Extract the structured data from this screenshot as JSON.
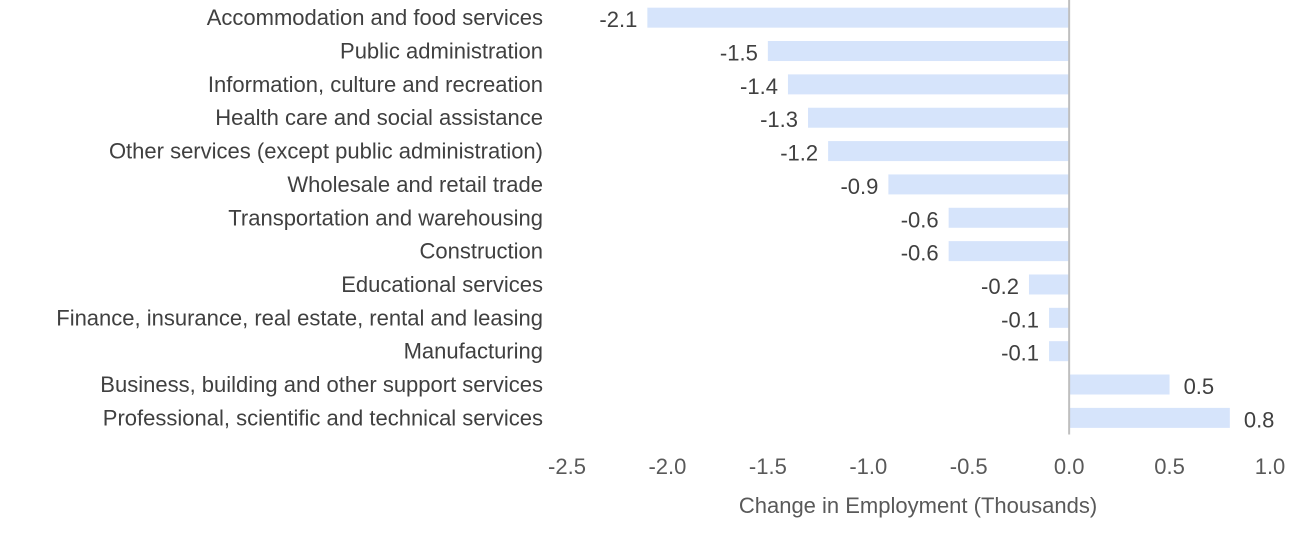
{
  "chart_data": {
    "type": "bar",
    "orientation": "horizontal",
    "categories": [
      "Accommodation and food services",
      "Public administration",
      "Information, culture and recreation",
      "Health care and social assistance",
      "Other services (except public administration)",
      "Wholesale and retail trade",
      "Transportation and warehousing",
      "Construction",
      "Educational services",
      "Finance, insurance, real estate, rental and leasing",
      "Manufacturing",
      "Business, building and other support services",
      "Professional, scientific and technical services"
    ],
    "values": [
      -2.1,
      -1.5,
      -1.4,
      -1.3,
      -1.2,
      -0.9,
      -0.6,
      -0.6,
      -0.2,
      -0.1,
      -0.1,
      0.5,
      0.8
    ],
    "value_labels": [
      "-2.1",
      "-1.5",
      "-1.4",
      "-1.3",
      "-1.2",
      "-0.9",
      "-0.6",
      "-0.6",
      "-0.2",
      "-0.1",
      "-0.1",
      "0.5",
      "0.8"
    ],
    "xlim": [
      -2.5,
      1.0
    ],
    "xticks": [
      -2.5,
      -2.0,
      -1.5,
      -1.0,
      -0.5,
      0.0,
      0.5,
      1.0
    ],
    "xtick_labels": [
      "-2.5",
      "-2.0",
      "-1.5",
      "-1.0",
      "-0.5",
      "0.0",
      "0.5",
      "1.0"
    ],
    "xlabel": "Change in Employment (Thousands)",
    "ylabel": "",
    "title": "",
    "grid": false,
    "legend": "none",
    "bar_color": "#d6e4fb",
    "zero_line_color": "#bfbfbf"
  }
}
